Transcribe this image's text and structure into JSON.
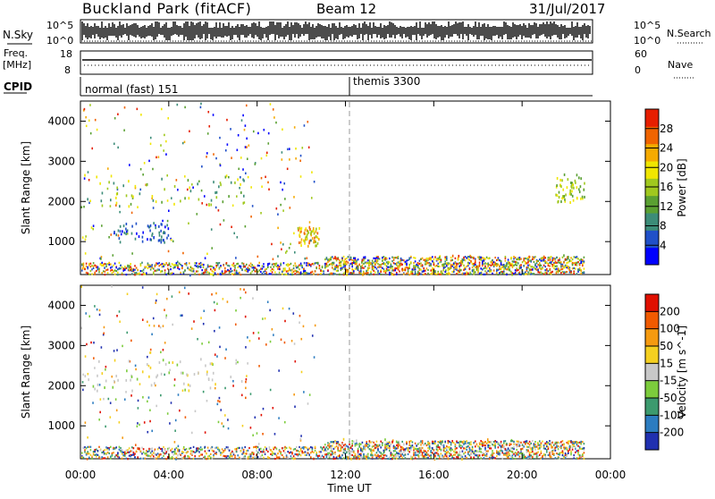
{
  "header": {
    "title": "Buckland Park (fitACF)",
    "beam": "Beam 12",
    "date": "31/Jul/2017"
  },
  "top_panels": {
    "nsky_label": "N.Sky",
    "nsearch_label": "N.Search",
    "freq_label_line1": "Freq.",
    "freq_label_line2": "[MHz]",
    "nave_label": "Nave",
    "cpid_label": "CPID",
    "noise_left_ticks": [
      "10^5",
      "10^0"
    ],
    "noise_right_ticks": [
      "10^5",
      "10^0"
    ],
    "freq_left_ticks": [
      "18",
      "8"
    ],
    "freq_right_ticks": [
      "60",
      "0"
    ],
    "cpid_segments": [
      {
        "label": "normal (fast) 151",
        "start_hour": 0
      },
      {
        "label": "themis 3300",
        "start_hour": 12
      }
    ]
  },
  "chart_data": [
    {
      "type": "heatmap",
      "name": "power",
      "ylabel": "Slant Range [km]",
      "colorbar_label": "Power [dB]",
      "colorbar_ticks": [
        "28",
        "24",
        "20",
        "16",
        "12",
        "8",
        "4"
      ],
      "colorbar_colors": [
        "#0000ff",
        "#2050c8",
        "#3c8c78",
        "#5aa032",
        "#a0c81e",
        "#f0e600",
        "#f5aa00",
        "#f06400",
        "#e61e00"
      ],
      "ylim": [
        180,
        4500
      ],
      "yticks": [
        1000,
        2000,
        3000,
        4000
      ],
      "xlim": [
        0,
        24
      ],
      "regions": [
        {
          "t": [
            0.1,
            7.5
          ],
          "r": [
            1900,
            2700
          ],
          "value": "12-20 dB"
        },
        {
          "t": [
            1.5,
            4.0
          ],
          "r": [
            1000,
            1500
          ],
          "value": "4-8 dB"
        },
        {
          "t": [
            9.8,
            10.8
          ],
          "r": [
            900,
            1400
          ],
          "value": "16-24 dB"
        },
        {
          "t": [
            11.0,
            22.5
          ],
          "r": [
            200,
            700
          ],
          "value": "12-28 dB"
        },
        {
          "t": [
            21.5,
            22.8
          ],
          "r": [
            2000,
            2700
          ],
          "value": "12-20 dB"
        }
      ]
    },
    {
      "type": "heatmap",
      "name": "velocity",
      "ylabel": "Slant Range [km]",
      "colorbar_label": "Velocity [m s^-1]",
      "colorbar_ticks": [
        "200",
        "100",
        "50",
        "15",
        "-15",
        "-50",
        "-100",
        "-200"
      ],
      "colorbar_colors": [
        "#2030b0",
        "#2c7cc0",
        "#3c9a6e",
        "#7ccc3c",
        "#c8c8c8",
        "#f5d020",
        "#f59a10",
        "#f05a00",
        "#e01000"
      ],
      "ylim": [
        180,
        4500
      ],
      "yticks": [
        1000,
        2000,
        3000,
        4000
      ],
      "xlim": [
        0,
        24
      ],
      "xlabel": "Time UT",
      "xticks": [
        "00:00",
        "04:00",
        "08:00",
        "12:00",
        "16:00",
        "20:00",
        "00:00"
      ],
      "regions": [
        {
          "t": [
            0.1,
            7.5
          ],
          "r": [
            1900,
            2700
          ],
          "value": "-15 to 15 m/s"
        },
        {
          "t": [
            11.0,
            22.5
          ],
          "r": [
            200,
            700
          ],
          "value": "-15 to -50 m/s"
        }
      ]
    }
  ]
}
